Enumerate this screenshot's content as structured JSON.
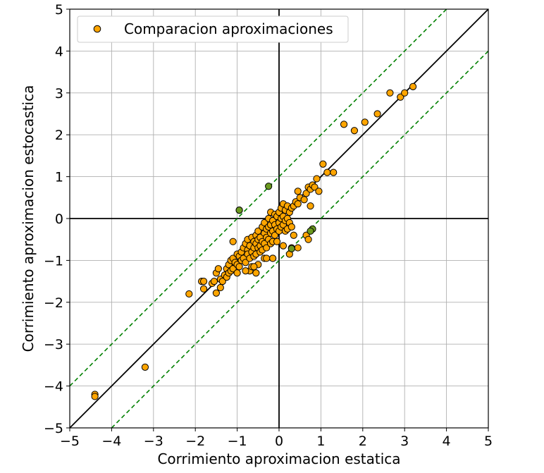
{
  "chart_data": {
    "type": "scatter",
    "xlabel": "Corrimiento aproximacion estatica",
    "ylabel": "Corrimiento aproximacion estocastica",
    "xlim": [
      -5,
      5
    ],
    "ylim": [
      -5,
      5
    ],
    "xticks": [
      -5,
      -4,
      -3,
      -2,
      -1,
      0,
      1,
      2,
      3,
      4,
      5
    ],
    "yticks": [
      -5,
      -4,
      -3,
      -2,
      -1,
      0,
      1,
      2,
      3,
      4,
      5
    ],
    "xtick_labels": [
      "−5",
      "−4",
      "−3",
      "−2",
      "−1",
      "0",
      "1",
      "2",
      "3",
      "4",
      "5"
    ],
    "ytick_labels": [
      "−5",
      "−4",
      "−3",
      "−2",
      "−1",
      "0",
      "1",
      "2",
      "3",
      "4",
      "5"
    ],
    "grid": true,
    "legend": {
      "position": "top-left",
      "entries": [
        "Comparacion aproximaciones"
      ]
    },
    "colors": {
      "marker": "#FFA500",
      "marker_edge": "#000000",
      "outlier": "#6B9A1F",
      "band": "#008000",
      "diagonal": "#000000",
      "grid": "#b0b0b0"
    },
    "reference_lines": [
      {
        "kind": "identity",
        "slope": 1,
        "intercept": 0,
        "style": "solid"
      },
      {
        "kind": "upper-band",
        "slope": 1,
        "intercept": 1,
        "style": "dashed"
      },
      {
        "kind": "lower-band",
        "slope": 1,
        "intercept": -1,
        "style": "dashed"
      }
    ],
    "series": [
      {
        "name": "Comparacion aproximaciones",
        "points": [
          [
            -4.4,
            -4.2
          ],
          [
            -4.4,
            -4.25
          ],
          [
            -3.2,
            -3.55
          ],
          [
            -2.15,
            -1.8
          ],
          [
            -1.85,
            -1.5
          ],
          [
            -1.8,
            -1.5
          ],
          [
            -1.8,
            -1.68
          ],
          [
            -1.6,
            -1.55
          ],
          [
            -1.55,
            -1.5
          ],
          [
            -1.5,
            -1.3
          ],
          [
            -1.45,
            -1.2
          ],
          [
            -1.5,
            -1.78
          ],
          [
            -1.4,
            -1.65
          ],
          [
            -1.4,
            -1.45
          ],
          [
            -1.35,
            -1.5
          ],
          [
            -1.3,
            -1.35
          ],
          [
            -1.25,
            -1.2
          ],
          [
            -1.25,
            -1.4
          ],
          [
            -1.2,
            -1.1
          ],
          [
            -1.2,
            -1.3
          ],
          [
            -1.15,
            -1.0
          ],
          [
            -1.15,
            -1.25
          ],
          [
            -1.1,
            -0.95
          ],
          [
            -1.1,
            -1.2
          ],
          [
            -1.05,
            -1.05
          ],
          [
            -1.0,
            -0.85
          ],
          [
            -1.0,
            -1.1
          ],
          [
            -1.0,
            -1.3
          ],
          [
            -0.95,
            -0.9
          ],
          [
            -0.95,
            -1.15
          ],
          [
            -0.9,
            -0.8
          ],
          [
            -0.9,
            -1.0
          ],
          [
            -0.85,
            -0.7
          ],
          [
            -0.85,
            -0.95
          ],
          [
            -0.8,
            -0.6
          ],
          [
            -0.8,
            -1.05
          ],
          [
            -0.75,
            -0.5
          ],
          [
            -0.75,
            -0.75
          ],
          [
            -0.75,
            -0.85
          ],
          [
            -0.7,
            -0.65
          ],
          [
            -0.7,
            -0.95
          ],
          [
            -0.7,
            -1.25
          ],
          [
            -0.65,
            -0.45
          ],
          [
            -0.65,
            -0.8
          ],
          [
            -0.65,
            -1.15
          ],
          [
            -0.6,
            -0.55
          ],
          [
            -0.6,
            -0.7
          ],
          [
            -0.6,
            -0.9
          ],
          [
            -0.55,
            -0.4
          ],
          [
            -0.55,
            -0.6
          ],
          [
            -0.55,
            -0.85
          ],
          [
            -0.55,
            -1.3
          ],
          [
            -0.5,
            -0.3
          ],
          [
            -0.5,
            -0.5
          ],
          [
            -0.5,
            -0.7
          ],
          [
            -0.5,
            -1.1
          ],
          [
            -0.45,
            -0.45
          ],
          [
            -0.45,
            -0.65
          ],
          [
            -0.45,
            -0.8
          ],
          [
            -0.4,
            -0.2
          ],
          [
            -0.4,
            -0.55
          ],
          [
            -0.4,
            -0.75
          ],
          [
            -0.35,
            -0.1
          ],
          [
            -0.35,
            -0.35
          ],
          [
            -0.35,
            -0.6
          ],
          [
            -0.35,
            -0.95
          ],
          [
            -0.3,
            -0.25
          ],
          [
            -0.3,
            -0.45
          ],
          [
            -0.3,
            -0.7
          ],
          [
            -0.25,
            0.0
          ],
          [
            -0.25,
            -0.2
          ],
          [
            -0.25,
            -0.5
          ],
          [
            -0.2,
            0.15
          ],
          [
            -0.2,
            -0.15
          ],
          [
            -0.2,
            -0.35
          ],
          [
            -0.2,
            -0.6
          ],
          [
            -0.15,
            -0.05
          ],
          [
            -0.15,
            -0.3
          ],
          [
            -0.15,
            -0.55
          ],
          [
            -0.15,
            -0.95
          ],
          [
            -0.1,
            0.1
          ],
          [
            -0.1,
            -0.15
          ],
          [
            -0.1,
            -0.4
          ],
          [
            -0.05,
            0.05
          ],
          [
            -0.05,
            -0.25
          ],
          [
            -0.05,
            -0.55
          ],
          [
            0.0,
            0.15
          ],
          [
            0.0,
            -0.1
          ],
          [
            0.0,
            -0.3
          ],
          [
            0.05,
            0.25
          ],
          [
            0.05,
            0.0
          ],
          [
            0.05,
            -0.2
          ],
          [
            0.1,
            0.35
          ],
          [
            0.1,
            0.05
          ],
          [
            0.1,
            -0.15
          ],
          [
            0.1,
            -0.65
          ],
          [
            0.15,
            0.2
          ],
          [
            0.15,
            -0.05
          ],
          [
            0.15,
            -0.3
          ],
          [
            0.2,
            0.3
          ],
          [
            0.2,
            0.0
          ],
          [
            0.2,
            -0.25
          ],
          [
            0.25,
            0.15
          ],
          [
            0.25,
            -0.1
          ],
          [
            0.3,
            0.25
          ],
          [
            0.3,
            -0.2
          ],
          [
            0.35,
            0.3
          ],
          [
            0.35,
            -0.4
          ],
          [
            0.4,
            0.4
          ],
          [
            0.45,
            0.65
          ],
          [
            0.45,
            0.35
          ],
          [
            0.5,
            0.5
          ],
          [
            0.6,
            0.45
          ],
          [
            0.65,
            0.6
          ],
          [
            0.7,
            0.75
          ],
          [
            0.75,
            0.7
          ],
          [
            0.75,
            0.3
          ],
          [
            0.8,
            0.8
          ],
          [
            0.85,
            0.75
          ],
          [
            0.9,
            0.95
          ],
          [
            0.95,
            0.65
          ],
          [
            1.05,
            1.3
          ],
          [
            1.15,
            1.1
          ],
          [
            1.3,
            1.1
          ],
          [
            1.55,
            2.25
          ],
          [
            1.8,
            2.1
          ],
          [
            2.05,
            2.3
          ],
          [
            2.35,
            2.5
          ],
          [
            2.65,
            3.0
          ],
          [
            2.9,
            2.9
          ],
          [
            3.0,
            3.0
          ],
          [
            3.2,
            3.15
          ],
          [
            0.65,
            -0.4
          ],
          [
            0.7,
            -0.5
          ],
          [
            0.25,
            -0.85
          ],
          [
            -0.15,
            -0.95
          ],
          [
            -0.3,
            -0.95
          ],
          [
            -0.6,
            -1.15
          ],
          [
            -0.8,
            -1.25
          ],
          [
            -1.1,
            -0.55
          ],
          [
            0.45,
            -0.7
          ],
          [
            0.3,
            -0.7
          ],
          [
            -0.95,
            0.2
          ]
        ]
      },
      {
        "name": "",
        "points": [
          [
            -0.25,
            0.77
          ],
          [
            -0.95,
            0.2
          ],
          [
            0.3,
            -0.72
          ],
          [
            0.8,
            -0.25
          ],
          [
            0.75,
            -0.3
          ]
        ]
      }
    ]
  }
}
